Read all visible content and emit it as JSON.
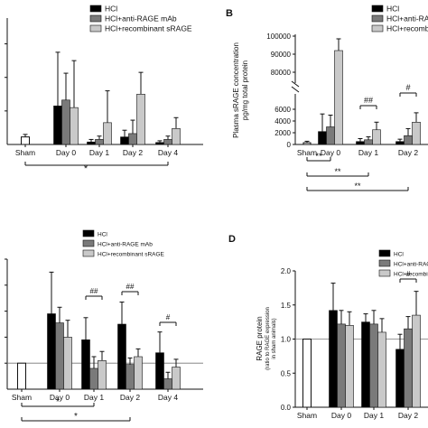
{
  "figure": {
    "legend_entries": [
      "HCl",
      "HCl+anti-RAGE mAb",
      "HCl+recombinant sRAGE"
    ],
    "colors": {
      "hcl": "#000000",
      "anti": "#7a7a7a",
      "recomb": "#c9c9c9",
      "sham": "#ffffff"
    }
  },
  "chart_data": [
    {
      "panel": "A",
      "panel_label": "",
      "type": "bar",
      "categories": [
        "Sham",
        "Day 0",
        "Day 1",
        "Day 2",
        "Day 4"
      ],
      "series": [
        {
          "name": "HCl",
          "values": [
            null,
            2.3,
            0.15,
            0.45,
            0.12
          ],
          "errors": [
            null,
            3.2,
            0.15,
            0.4,
            0.1
          ]
        },
        {
          "name": "HCl+anti-RAGE mAb",
          "values": [
            null,
            2.65,
            0.3,
            0.65,
            0.3
          ],
          "errors": [
            null,
            1.6,
            0.2,
            0.8,
            0.2
          ]
        },
        {
          "name": "HCl+recombinant sRAGE",
          "values": [
            null,
            2.2,
            1.3,
            3.0,
            0.95
          ],
          "errors": [
            null,
            2.8,
            1.9,
            1.3,
            0.65
          ]
        }
      ],
      "sham": {
        "value": 0.45,
        "error": 0.15
      },
      "ylim": [
        0,
        7
      ],
      "yticks": [
        "",
        "",
        ""
      ],
      "ylabel": "",
      "brackets": [
        {
          "from": "Sham",
          "to": "Day 4",
          "label": "*"
        }
      ]
    },
    {
      "panel": "B",
      "panel_label": "B",
      "type": "bar",
      "categories": [
        "Sham",
        "Day 0",
        "Day 1",
        "Day 2"
      ],
      "series": [
        {
          "name": "HCl",
          "values": [
            null,
            2200,
            500,
            500
          ],
          "errors": [
            null,
            3000,
            500,
            400
          ]
        },
        {
          "name": "HCl+anti-RAGE mAb",
          "values": [
            null,
            3000,
            800,
            1500
          ],
          "errors": [
            null,
            2000,
            500,
            1200
          ]
        },
        {
          "name": "HCl+recombinant sRAGE",
          "values": [
            null,
            92000,
            2500,
            3800
          ],
          "errors": [
            null,
            6500,
            1300,
            1600
          ]
        }
      ],
      "sham": {
        "value": 300,
        "error": 250
      },
      "ylabel": "Plasma sRAGE concentration",
      "ylabel2": "pg/mg total protein",
      "yticks_low": [
        "0",
        "2000",
        "4000",
        "6000"
      ],
      "yticks_high": [
        "80000",
        "90000",
        "100000"
      ],
      "brackets": [
        {
          "group": "Day 1",
          "label": "##"
        },
        {
          "group": "Day 2",
          "label": "#"
        },
        {
          "from": "Sham",
          "to": "Day 0",
          "label": "**"
        },
        {
          "from": "Sham",
          "to": "Day 1",
          "label": "**"
        },
        {
          "from": "Sham",
          "to": "Day 2",
          "label": "**"
        }
      ]
    },
    {
      "panel": "C",
      "panel_label": "",
      "type": "bar",
      "categories": [
        "Sham",
        "Day 0",
        "Day 1",
        "Day 2",
        "Day 4"
      ],
      "series": [
        {
          "name": "HCl",
          "values": [
            null,
            2.9,
            1.9,
            2.5,
            1.4
          ],
          "errors": [
            null,
            1.6,
            0.85,
            0.85,
            0.8
          ]
        },
        {
          "name": "HCl+anti-RAGE mAb",
          "values": [
            null,
            2.55,
            0.8,
            0.95,
            0.4
          ],
          "errors": [
            null,
            0.6,
            0.45,
            0.25,
            0.25
          ]
        },
        {
          "name": "HCl+recombinant sRAGE",
          "values": [
            null,
            2.0,
            1.1,
            1.25,
            0.85
          ],
          "errors": [
            null,
            0.65,
            0.35,
            0.3,
            0.3
          ]
        }
      ],
      "sham": {
        "value": 1.0,
        "error": 0
      },
      "ylim": [
        0,
        5
      ],
      "brackets": [
        {
          "group": "Day 1",
          "label": "##"
        },
        {
          "group": "Day 2",
          "label": "##"
        },
        {
          "group": "Day 4",
          "label": "#"
        },
        {
          "from": "Sham",
          "to": "Day 1",
          "label": "*"
        },
        {
          "from": "Sham",
          "to": "Day 2",
          "label": "*"
        }
      ]
    },
    {
      "panel": "D",
      "panel_label": "D",
      "type": "bar",
      "categories": [
        "Sham",
        "Day 0",
        "Day 1",
        "Day 2"
      ],
      "series": [
        {
          "name": "HCl",
          "values": [
            null,
            1.42,
            1.25,
            0.85
          ],
          "errors": [
            null,
            0.4,
            0.12,
            0.22
          ]
        },
        {
          "name": "HCl+anti-RAGE mAb",
          "values": [
            null,
            1.22,
            1.22,
            1.15
          ],
          "errors": [
            null,
            0.2,
            0.2,
            0.18
          ]
        },
        {
          "name": "HCl+recombinant sRAGE",
          "values": [
            null,
            1.2,
            1.1,
            1.35
          ],
          "errors": [
            null,
            0.2,
            0.2,
            0.35
          ]
        }
      ],
      "sham": {
        "value": 1.0,
        "error": 0
      },
      "ylim": [
        0,
        2
      ],
      "ylabel": "RAGE protein",
      "ylabel2": "(ratio to RAGE expression",
      "ylabel3": "in sham animals)",
      "yticks": [
        "0.0",
        "0.5",
        "1.0",
        "1.5",
        "2.0"
      ],
      "brackets": [
        {
          "group": "Day 2",
          "label": "#"
        }
      ]
    }
  ]
}
